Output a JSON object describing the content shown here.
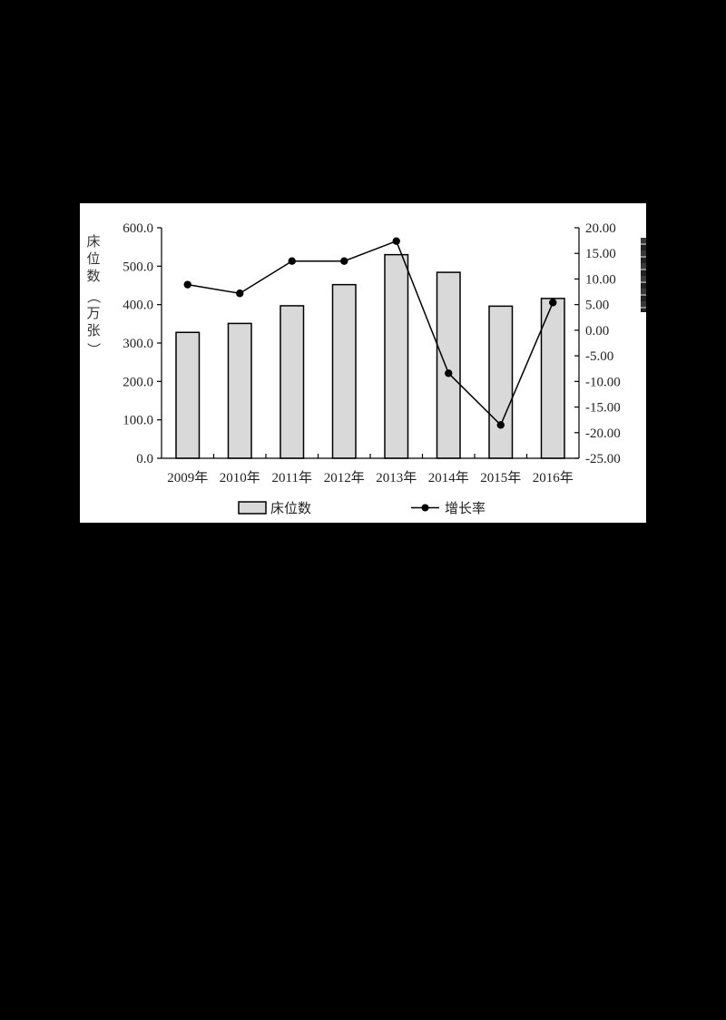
{
  "chart_data": {
    "type": "bar+line",
    "title": "",
    "categories": [
      "2009年",
      "2010年",
      "2011年",
      "2012年",
      "2013年",
      "2014年",
      "2015年",
      "2016年"
    ],
    "series": [
      {
        "name": "床位数",
        "type": "bar",
        "axis": "left",
        "values": [
          327.7,
          351.0,
          397.0,
          452.0,
          530.0,
          484.0,
          396.0,
          416.0
        ],
        "color": "#d9d9d9"
      },
      {
        "name": "增长率",
        "type": "line",
        "axis": "right",
        "values": [
          8.9,
          7.2,
          13.5,
          13.5,
          17.4,
          -8.4,
          -18.5,
          5.4
        ],
        "color": "#000000"
      }
    ],
    "xlabel": "",
    "ylabel": "床位数（万张）",
    "ylabel_right": "",
    "ylim": [
      0,
      600
    ],
    "ylim_right": [
      -25,
      20
    ],
    "yticks": [
      "0.0",
      "100.0",
      "200.0",
      "300.0",
      "400.0",
      "500.0",
      "600.0"
    ],
    "yticks_right": [
      "-25.00",
      "-20.00",
      "-15.00",
      "-10.00",
      "-5.00",
      "0.00",
      "5.00",
      "10.00",
      "15.00",
      "20.00"
    ],
    "grid": false,
    "legend_position": "bottom"
  },
  "axis": {
    "left_title_chars": [
      "床",
      "位",
      "数",
      "（",
      "万",
      "张",
      "）"
    ]
  },
  "legend": {
    "bar_label": "床位数",
    "line_label": "增长率"
  }
}
